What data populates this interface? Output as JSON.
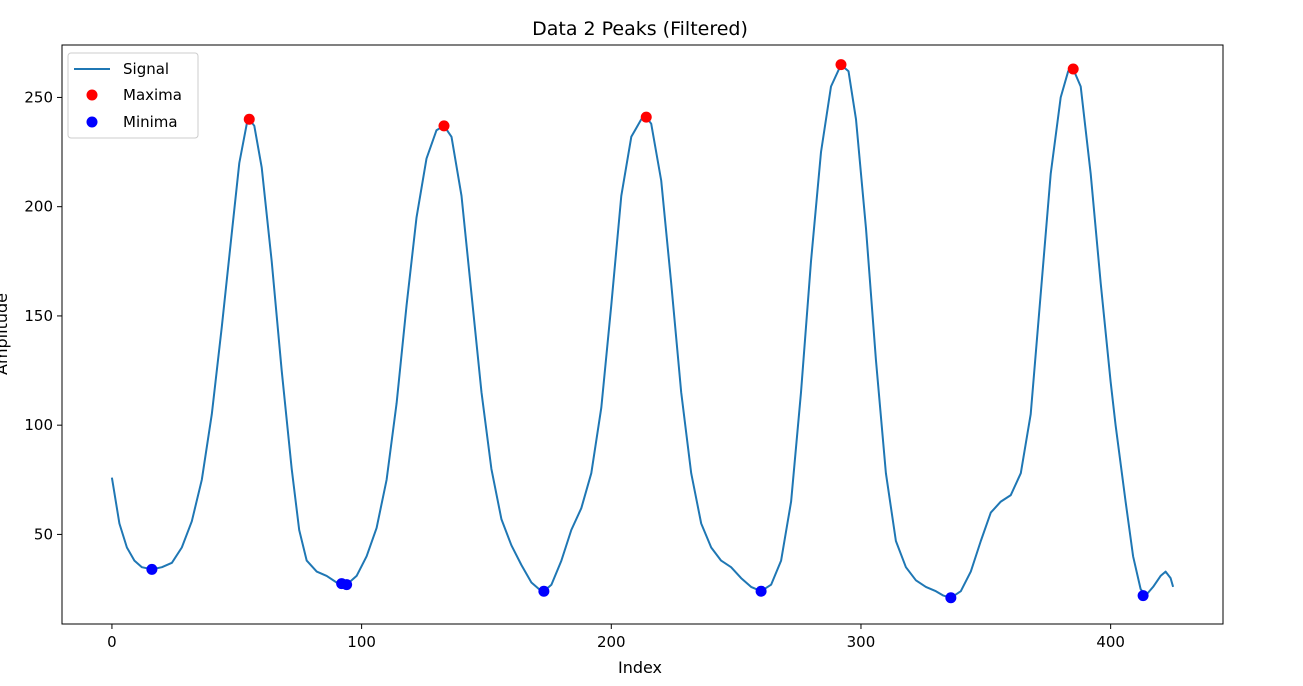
{
  "chart_data": {
    "type": "line",
    "title": "Data 2 Peaks (Filtered)",
    "xlabel": "Index",
    "ylabel": "Amplitude",
    "xlim": [
      -20,
      445
    ],
    "ylim": [
      9,
      274
    ],
    "xticks": [
      0,
      100,
      200,
      300,
      400
    ],
    "yticks": [
      50,
      100,
      150,
      200,
      250
    ],
    "grid": false,
    "legend_position": "upper-left",
    "colors": {
      "signal": "#1f77b4",
      "maxima": "#ff0000",
      "minima": "#0000ff"
    },
    "series": [
      {
        "name": "Signal",
        "kind": "line",
        "points": [
          [
            0,
            76
          ],
          [
            3,
            55
          ],
          [
            6,
            44
          ],
          [
            9,
            38
          ],
          [
            12,
            35
          ],
          [
            16,
            34
          ],
          [
            20,
            35
          ],
          [
            24,
            37
          ],
          [
            28,
            44
          ],
          [
            32,
            56
          ],
          [
            36,
            75
          ],
          [
            40,
            105
          ],
          [
            44,
            145
          ],
          [
            48,
            188
          ],
          [
            51,
            220
          ],
          [
            54,
            238
          ],
          [
            55,
            240
          ],
          [
            57,
            237
          ],
          [
            60,
            218
          ],
          [
            64,
            175
          ],
          [
            68,
            125
          ],
          [
            72,
            80
          ],
          [
            75,
            52
          ],
          [
            78,
            38
          ],
          [
            82,
            33
          ],
          [
            86,
            31
          ],
          [
            90,
            28
          ],
          [
            92,
            27.5
          ],
          [
            94,
            27
          ],
          [
            98,
            31
          ],
          [
            102,
            40
          ],
          [
            106,
            53
          ],
          [
            110,
            75
          ],
          [
            114,
            110
          ],
          [
            118,
            155
          ],
          [
            122,
            195
          ],
          [
            126,
            222
          ],
          [
            130,
            235
          ],
          [
            133,
            237
          ],
          [
            136,
            232
          ],
          [
            140,
            205
          ],
          [
            144,
            160
          ],
          [
            148,
            115
          ],
          [
            152,
            80
          ],
          [
            156,
            57
          ],
          [
            160,
            45
          ],
          [
            164,
            36
          ],
          [
            168,
            28
          ],
          [
            171,
            25
          ],
          [
            173,
            24
          ],
          [
            176,
            27
          ],
          [
            180,
            38
          ],
          [
            184,
            52
          ],
          [
            188,
            62
          ],
          [
            192,
            78
          ],
          [
            196,
            108
          ],
          [
            200,
            155
          ],
          [
            204,
            205
          ],
          [
            208,
            232
          ],
          [
            212,
            240
          ],
          [
            214,
            241
          ],
          [
            216,
            238
          ],
          [
            220,
            212
          ],
          [
            224,
            165
          ],
          [
            228,
            115
          ],
          [
            232,
            78
          ],
          [
            236,
            55
          ],
          [
            240,
            44
          ],
          [
            244,
            38
          ],
          [
            248,
            35
          ],
          [
            252,
            30
          ],
          [
            256,
            26
          ],
          [
            260,
            24
          ],
          [
            264,
            27
          ],
          [
            268,
            38
          ],
          [
            272,
            65
          ],
          [
            276,
            115
          ],
          [
            280,
            175
          ],
          [
            284,
            225
          ],
          [
            288,
            255
          ],
          [
            292,
            265
          ],
          [
            295,
            262
          ],
          [
            298,
            240
          ],
          [
            302,
            190
          ],
          [
            306,
            130
          ],
          [
            310,
            78
          ],
          [
            314,
            47
          ],
          [
            318,
            35
          ],
          [
            322,
            29
          ],
          [
            326,
            26
          ],
          [
            330,
            24
          ],
          [
            333,
            22
          ],
          [
            336,
            21
          ],
          [
            340,
            24
          ],
          [
            344,
            33
          ],
          [
            348,
            47
          ],
          [
            352,
            60
          ],
          [
            356,
            65
          ],
          [
            360,
            68
          ],
          [
            364,
            78
          ],
          [
            368,
            105
          ],
          [
            372,
            160
          ],
          [
            376,
            215
          ],
          [
            380,
            250
          ],
          [
            383,
            262
          ],
          [
            385,
            263
          ],
          [
            388,
            255
          ],
          [
            392,
            215
          ],
          [
            396,
            165
          ],
          [
            400,
            120
          ],
          [
            402,
            100
          ],
          [
            406,
            65
          ],
          [
            409,
            40
          ],
          [
            412,
            25
          ],
          [
            414,
            22
          ],
          [
            417,
            26
          ],
          [
            420,
            31
          ],
          [
            422,
            33
          ],
          [
            424,
            30
          ],
          [
            425,
            26
          ]
        ]
      },
      {
        "name": "Maxima",
        "kind": "scatter",
        "points": [
          [
            55,
            240
          ],
          [
            133,
            237
          ],
          [
            214,
            241
          ],
          [
            292,
            265
          ],
          [
            385,
            263
          ]
        ]
      },
      {
        "name": "Minima",
        "kind": "scatter",
        "points": [
          [
            16,
            34
          ],
          [
            92,
            27.5
          ],
          [
            94,
            27
          ],
          [
            173,
            24
          ],
          [
            260,
            24
          ],
          [
            336,
            21
          ],
          [
            413,
            22
          ]
        ]
      }
    ]
  }
}
